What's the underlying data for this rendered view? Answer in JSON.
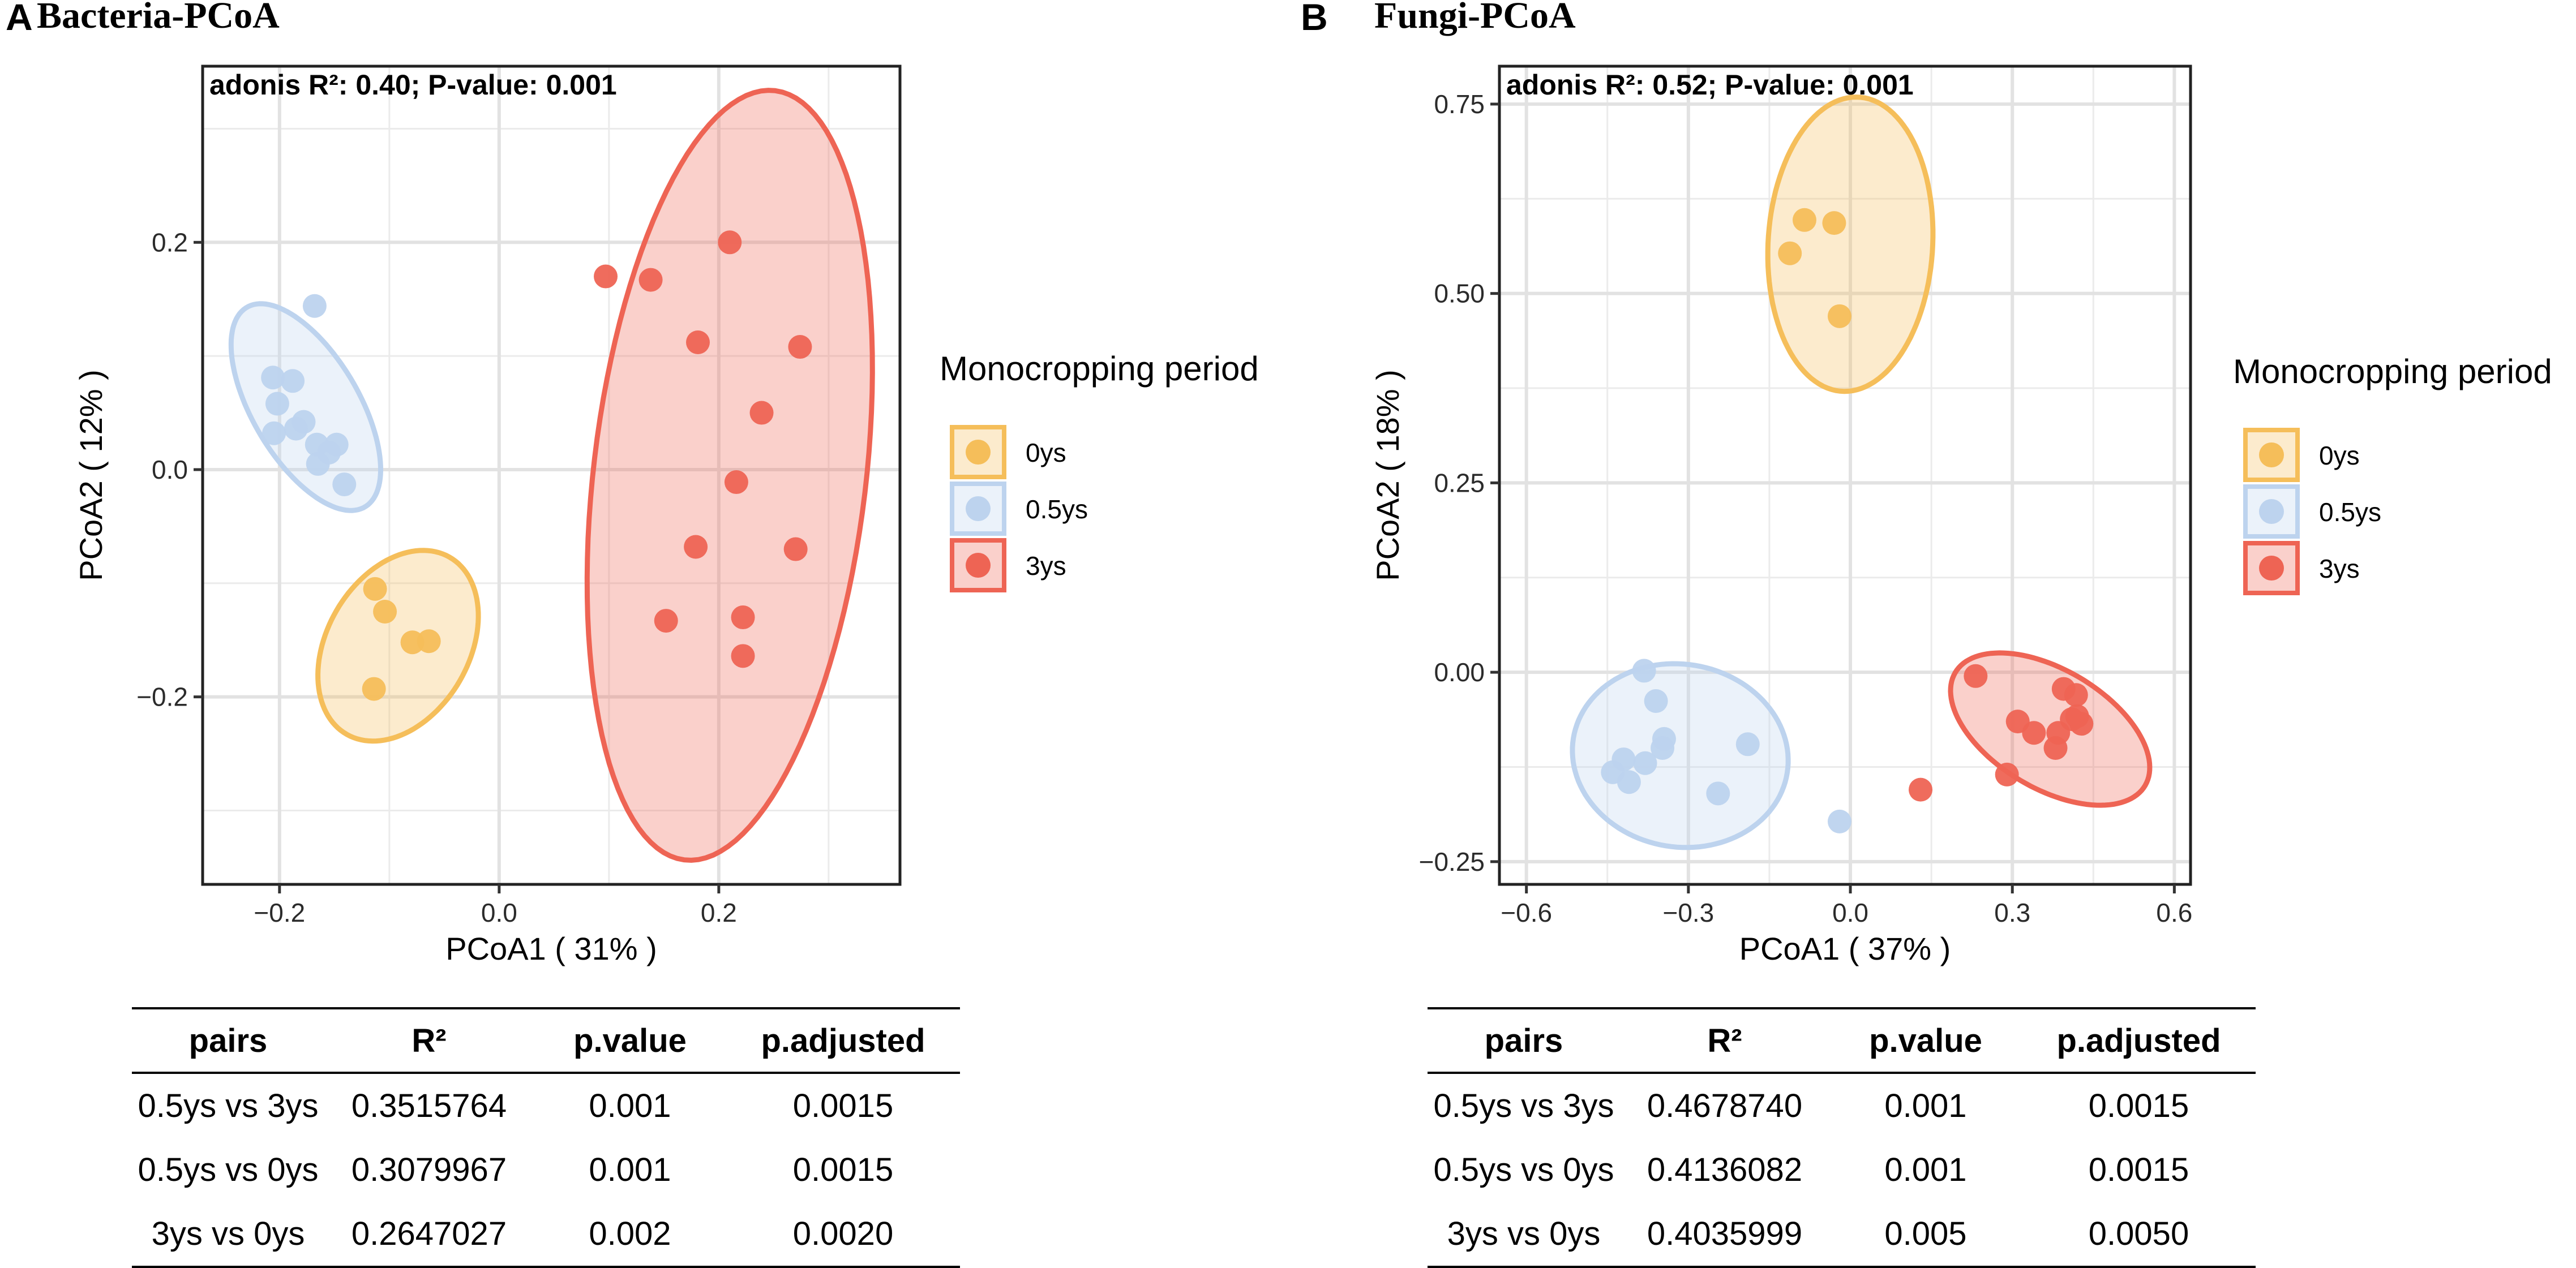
{
  "panels": [
    {
      "label": "A",
      "title": "Bacteria-PCoA"
    },
    {
      "label": "B",
      "title": "Fungi-PCoA"
    }
  ],
  "colors": {
    "0ys": "#F5BE5A",
    "0.5ys": "#BDD3EE",
    "3ys": "#EE6454"
  },
  "chart_data": [
    {
      "type": "scatter",
      "title": "Bacteria-PCoA",
      "annotation": "adonis R²: 0.40; P-value: 0.001",
      "xlabel": "PCoA1 ( 31% )",
      "ylabel": "PCoA2 ( 12% )",
      "xlim": [
        -0.27,
        0.365
      ],
      "ylim": [
        -0.365,
        0.355
      ],
      "xticks": [
        -0.2,
        0.0,
        0.2
      ],
      "xtick_labels": [
        "−0.2",
        "0.0",
        "0.2"
      ],
      "yticks": [
        -0.2,
        0.0,
        0.2
      ],
      "ytick_labels": [
        "−0.2",
        "0.0",
        "0.2"
      ],
      "grid": true,
      "legend_title": "Monocropping period",
      "series": [
        {
          "name": "0ys",
          "points": [
            [
              -0.113,
              -0.105
            ],
            [
              -0.104,
              -0.125
            ],
            [
              -0.079,
              -0.152
            ],
            [
              -0.064,
              -0.151
            ],
            [
              -0.114,
              -0.193
            ]
          ],
          "ellipse": {
            "cx": -0.092,
            "cy": -0.155,
            "rx": 0.091,
            "ry": 0.064,
            "angle": 57
          }
        },
        {
          "name": "0.5ys",
          "points": [
            [
              -0.168,
              0.144
            ],
            [
              -0.206,
              0.081
            ],
            [
              -0.188,
              0.078
            ],
            [
              -0.202,
              0.058
            ],
            [
              -0.178,
              0.042
            ],
            [
              -0.185,
              0.036
            ],
            [
              -0.205,
              0.032
            ],
            [
              -0.166,
              0.022
            ],
            [
              -0.148,
              0.022
            ],
            [
              -0.155,
              0.015
            ],
            [
              -0.165,
              0.005
            ],
            [
              -0.141,
              -0.013
            ]
          ],
          "ellipse": {
            "cx": -0.176,
            "cy": 0.055,
            "rx": 0.103,
            "ry": 0.048,
            "angle": -58
          }
        },
        {
          "name": "3ys",
          "points": [
            [
              0.21,
              0.2
            ],
            [
              0.097,
              0.17
            ],
            [
              0.138,
              0.167
            ],
            [
              0.181,
              0.112
            ],
            [
              0.274,
              0.108
            ],
            [
              0.239,
              0.05
            ],
            [
              0.216,
              -0.011
            ],
            [
              0.179,
              -0.068
            ],
            [
              0.27,
              -0.07
            ],
            [
              0.152,
              -0.133
            ],
            [
              0.222,
              -0.13
            ],
            [
              0.222,
              -0.164
            ]
          ],
          "ellipse": {
            "cx": 0.21,
            "cy": -0.005,
            "rx": 0.341,
            "ry": 0.124,
            "angle": 83
          }
        }
      ]
    },
    {
      "type": "scatter",
      "title": "Fungi-PCoA",
      "annotation": "adonis R²: 0.52; P-value: 0.001",
      "xlabel": "PCoA1 ( 37% )",
      "ylabel": "PCoA2 ( 18% )",
      "xlim": [
        -0.65,
        0.63
      ],
      "ylim": [
        -0.28,
        0.8
      ],
      "xticks": [
        -0.6,
        -0.3,
        0.0,
        0.3,
        0.6
      ],
      "xtick_labels": [
        "−0.6",
        "−0.3",
        "0.0",
        "0.3",
        "0.6"
      ],
      "yticks": [
        -0.25,
        0.0,
        0.25,
        0.5,
        0.75
      ],
      "ytick_labels": [
        "−0.25",
        "0.00",
        "0.25",
        "0.50",
        "0.75"
      ],
      "grid": true,
      "legend_title": "Monocropping period",
      "series": [
        {
          "name": "0ys",
          "points": [
            [
              -0.085,
              0.597
            ],
            [
              -0.03,
              0.593
            ],
            [
              -0.112,
              0.553
            ],
            [
              -0.02,
              0.47
            ]
          ],
          "ellipse": {
            "cx": -0.0,
            "cy": 0.565,
            "rx": 0.195,
            "ry": 0.152,
            "angle": 82
          }
        },
        {
          "name": "0.5ys",
          "points": [
            [
              -0.382,
              0.002
            ],
            [
              -0.36,
              -0.038
            ],
            [
              -0.345,
              -0.088
            ],
            [
              -0.348,
              -0.1
            ],
            [
              -0.19,
              -0.095
            ],
            [
              -0.38,
              -0.12
            ],
            [
              -0.42,
              -0.115
            ],
            [
              -0.44,
              -0.132
            ],
            [
              -0.41,
              -0.145
            ],
            [
              -0.245,
              -0.16
            ],
            [
              -0.02,
              -0.197
            ]
          ],
          "ellipse": {
            "cx": -0.315,
            "cy": -0.11,
            "rx": 0.2,
            "ry": 0.121,
            "angle": -3
          }
        },
        {
          "name": "3ys",
          "points": [
            [
              0.232,
              -0.005
            ],
            [
              0.395,
              -0.022
            ],
            [
              0.418,
              -0.03
            ],
            [
              0.31,
              -0.065
            ],
            [
              0.41,
              -0.062
            ],
            [
              0.428,
              -0.068
            ],
            [
              0.42,
              -0.058
            ],
            [
              0.34,
              -0.08
            ],
            [
              0.385,
              -0.08
            ],
            [
              0.38,
              -0.1
            ],
            [
              0.29,
              -0.135
            ],
            [
              0.13,
              -0.155
            ]
          ],
          "ellipse": {
            "cx": 0.37,
            "cy": -0.075,
            "rx": 0.193,
            "ry": 0.083,
            "angle": -19
          }
        }
      ]
    }
  ],
  "tables": [
    {
      "headers": [
        "pairs",
        "R²",
        "p.value",
        "p.adjusted"
      ],
      "rows": [
        [
          "0.5ys vs 3ys",
          "0.3515764",
          "0.001",
          "0.0015"
        ],
        [
          "0.5ys vs 0ys",
          "0.3079967",
          "0.001",
          "0.0015"
        ],
        [
          "3ys vs 0ys",
          "0.2647027",
          "0.002",
          "0.0020"
        ]
      ]
    },
    {
      "headers": [
        "pairs",
        "R²",
        "p.value",
        "p.adjusted"
      ],
      "rows": [
        [
          "0.5ys vs 3ys",
          "0.4678740",
          "0.001",
          "0.0015"
        ],
        [
          "0.5ys vs 0ys",
          "0.4136082",
          "0.001",
          "0.0015"
        ],
        [
          "3ys vs 0ys",
          "0.4035999",
          "0.005",
          "0.0050"
        ]
      ]
    }
  ]
}
